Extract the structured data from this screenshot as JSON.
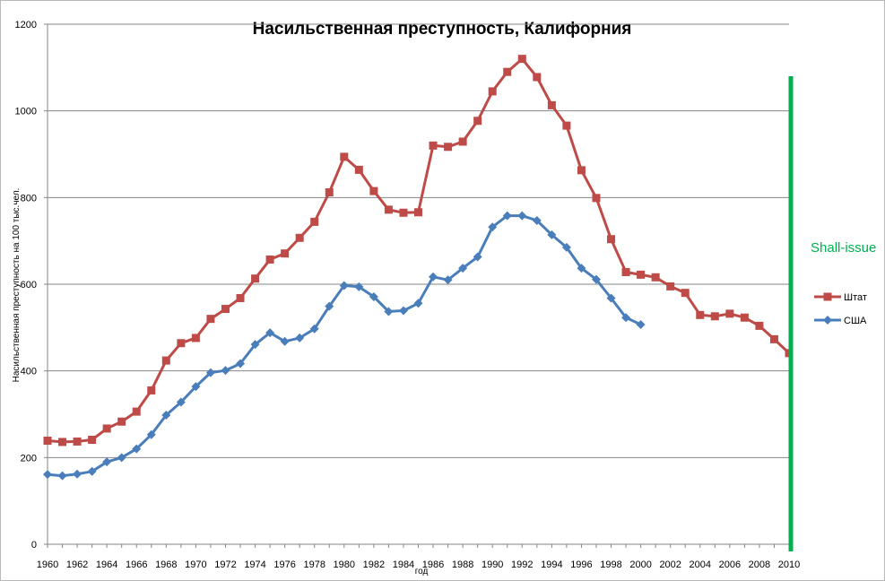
{
  "chart_data": {
    "type": "line",
    "title": "Насильственная преступность,  Калифорния",
    "xlabel": "год",
    "ylabel": "Насильственная  преступность  на  100 тыс.чел.",
    "xlim": [
      1960,
      2010
    ],
    "ylim": [
      0,
      1200
    ],
    "yticks": [
      0,
      200,
      400,
      600,
      800,
      1000,
      1200
    ],
    "ytick_labels": [
      "0",
      "200",
      "400",
      "600",
      "800",
      "1000",
      "1200"
    ],
    "xticks": [
      1960,
      1962,
      1964,
      1966,
      1968,
      1970,
      1972,
      1974,
      1976,
      1978,
      1980,
      1982,
      1984,
      1986,
      1988,
      1990,
      1992,
      1994,
      1996,
      1998,
      2000,
      2002,
      2004,
      2006,
      2008,
      2010
    ],
    "xtick_labels": [
      "1960",
      "1962",
      "1964",
      "1966",
      "1968",
      "1970",
      "1972",
      "1974",
      "1976",
      "1978",
      "1980",
      "1982",
      "1984",
      "1986",
      "1988",
      "1990",
      "1992",
      "1994",
      "1996",
      "1998",
      "2000",
      "2002",
      "2004",
      "2006",
      "2008",
      "2010"
    ],
    "grid": "horizontal",
    "legend_position": "right",
    "series": [
      {
        "name": "Штат",
        "color": "#be4b48",
        "marker": "square",
        "x": [
          1960,
          1961,
          1962,
          1963,
          1964,
          1965,
          1966,
          1967,
          1968,
          1969,
          1970,
          1971,
          1972,
          1973,
          1974,
          1975,
          1976,
          1977,
          1978,
          1979,
          1980,
          1981,
          1982,
          1983,
          1984,
          1985,
          1986,
          1987,
          1988,
          1989,
          1990,
          1991,
          1992,
          1993,
          1994,
          1995,
          1996,
          1997,
          1998,
          1999,
          2000,
          2001,
          2002,
          2003,
          2004,
          2005,
          2006,
          2007,
          2008,
          2009,
          2010
        ],
        "values": [
          239,
          236,
          237,
          241,
          267,
          283,
          306,
          355,
          424,
          464,
          476,
          520,
          543,
          568,
          613,
          657,
          671,
          707,
          744,
          812,
          894,
          864,
          815,
          772,
          765,
          766,
          920,
          917,
          929,
          977,
          1045,
          1090,
          1120,
          1078,
          1013,
          966,
          863,
          799,
          704,
          628,
          622,
          616,
          595,
          580,
          529,
          526,
          532,
          523,
          504,
          473,
          441
        ]
      },
      {
        "name": "США",
        "color": "#4a7ebb",
        "marker": "diamond",
        "x": [
          1960,
          1961,
          1962,
          1963,
          1964,
          1965,
          1966,
          1967,
          1968,
          1969,
          1970,
          1971,
          1972,
          1973,
          1974,
          1975,
          1976,
          1977,
          1978,
          1979,
          1980,
          1981,
          1982,
          1983,
          1984,
          1985,
          1986,
          1987,
          1988,
          1989,
          1990,
          1991,
          1992,
          1993,
          1994,
          1995,
          1996,
          1997,
          1998,
          1999,
          2000
        ],
        "values": [
          161,
          158,
          162,
          168,
          190,
          200,
          220,
          253,
          298,
          328,
          364,
          396,
          401,
          417,
          461,
          488,
          468,
          476,
          497,
          549,
          597,
          594,
          571,
          537,
          539,
          556,
          617,
          610,
          637,
          663,
          732,
          758,
          758,
          747,
          714,
          685,
          637,
          611,
          568,
          523,
          507
        ]
      }
    ],
    "annotation": {
      "text": "Shall-issue",
      "color": "#00b050",
      "year": 2010
    }
  }
}
